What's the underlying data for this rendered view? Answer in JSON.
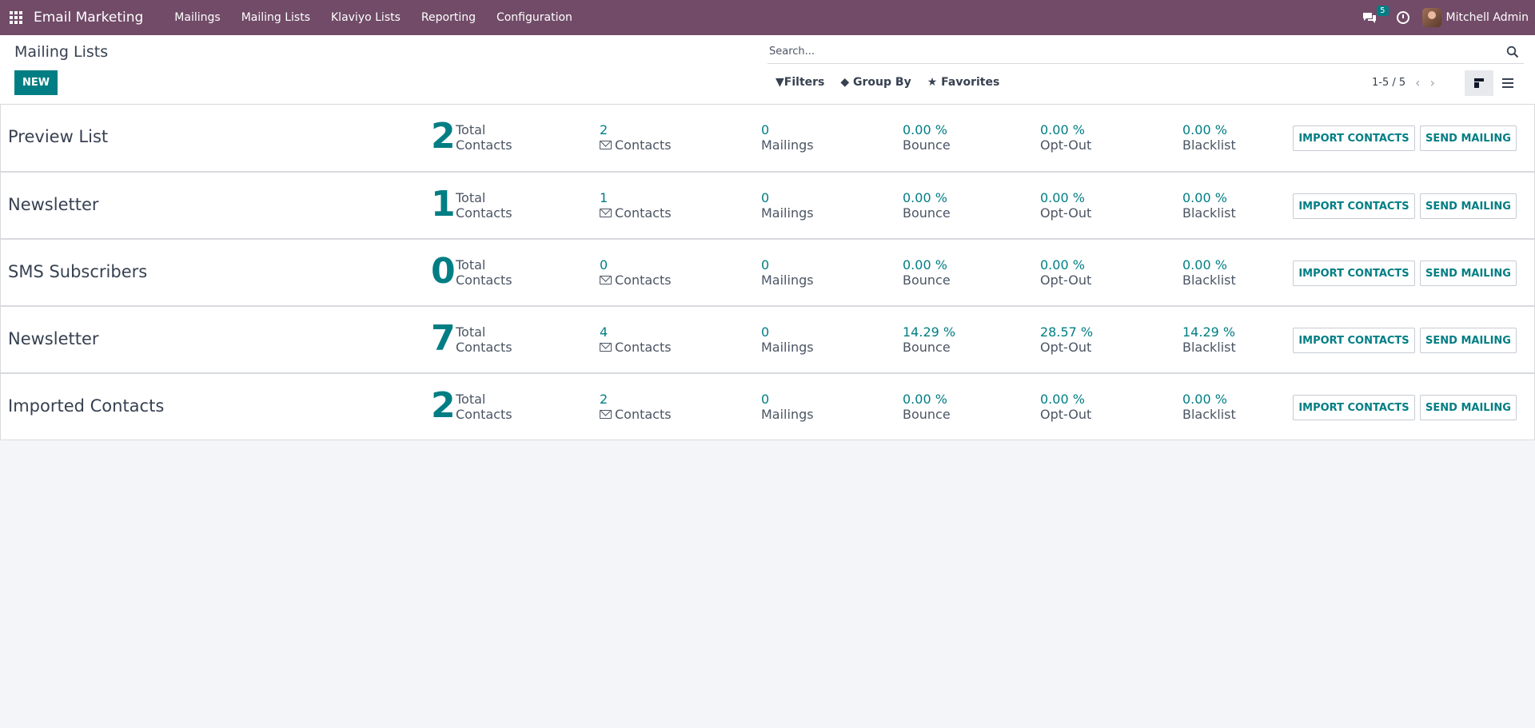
{
  "navbar": {
    "brand": "Email Marketing",
    "menu": [
      "Mailings",
      "Mailing Lists",
      "Klaviyo Lists",
      "Reporting",
      "Configuration"
    ],
    "chat_count": "5",
    "user_name": "Mitchell Admin"
  },
  "control": {
    "title": "Mailing Lists",
    "new_label": "NEW",
    "search_placeholder": "Search...",
    "filters_label": "Filters",
    "group_by_label": "Group By",
    "favorites_label": "Favorites",
    "pager": "1-5 / 5"
  },
  "labels": {
    "total": "Total",
    "contacts": "Contacts",
    "mailings": "Mailings",
    "bounce": "Bounce",
    "optout": "Opt-Out",
    "blacklist": "Blacklist",
    "import": "IMPORT CONTACTS",
    "send": "SEND MAILING"
  },
  "rows": [
    {
      "name": "Preview List",
      "total": "2",
      "email_contacts": "2",
      "mailings": "0",
      "bounce": "0.00 %",
      "optout": "0.00 %",
      "blacklist": "0.00 %"
    },
    {
      "name": "Newsletter",
      "total": "1",
      "email_contacts": "1",
      "mailings": "0",
      "bounce": "0.00 %",
      "optout": "0.00 %",
      "blacklist": "0.00 %"
    },
    {
      "name": "SMS Subscribers",
      "total": "0",
      "email_contacts": "0",
      "mailings": "0",
      "bounce": "0.00 %",
      "optout": "0.00 %",
      "blacklist": "0.00 %"
    },
    {
      "name": "Newsletter",
      "total": "7",
      "email_contacts": "4",
      "mailings": "0",
      "bounce": "14.29 %",
      "optout": "28.57 %",
      "blacklist": "14.29 %"
    },
    {
      "name": "Imported Contacts",
      "total": "2",
      "email_contacts": "2",
      "mailings": "0",
      "bounce": "0.00 %",
      "optout": "0.00 %",
      "blacklist": "0.00 %"
    }
  ],
  "colors": {
    "navbar": "#714b67",
    "accent": "#017e84"
  }
}
